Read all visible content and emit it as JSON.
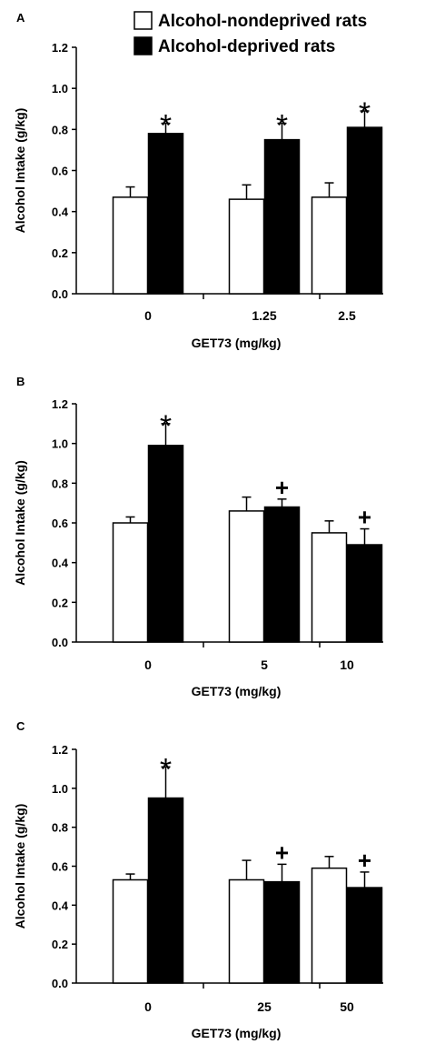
{
  "legend": {
    "nondeprived_label": "Alcohol-nondeprived rats",
    "deprived_label": "Alcohol-deprived rats",
    "nondeprived_color": "#ffffff",
    "deprived_color": "#000000"
  },
  "chart_data": [
    {
      "panel": "A",
      "type": "bar",
      "ylabel": "Alcohol Intake (g/kg)",
      "xlabel": "GET73 (mg/kg)",
      "ylim": [
        0,
        1.2
      ],
      "yticks": [
        "0.0",
        "0.2",
        "0.4",
        "0.6",
        "0.8",
        "1.0",
        "1.2"
      ],
      "categories": [
        "0",
        "1.25",
        "2.5"
      ],
      "series": [
        {
          "name": "Alcohol-nondeprived rats",
          "values": [
            0.47,
            0.46,
            0.47
          ],
          "errors": [
            0.05,
            0.07,
            0.07
          ],
          "markers": [
            "",
            "",
            ""
          ]
        },
        {
          "name": "Alcohol-deprived rats",
          "values": [
            0.78,
            0.75,
            0.81
          ],
          "errors": [
            0.05,
            0.08,
            0.08
          ],
          "markers": [
            "*",
            "*",
            "*"
          ]
        }
      ]
    },
    {
      "panel": "B",
      "type": "bar",
      "ylabel": "Alcohol Intake (g/kg)",
      "xlabel": "GET73 (mg/kg)",
      "ylim": [
        0,
        1.2
      ],
      "yticks": [
        "0.0",
        "0.2",
        "0.4",
        "0.6",
        "0.8",
        "1.0",
        "1.2"
      ],
      "categories": [
        "0",
        "5",
        "10"
      ],
      "series": [
        {
          "name": "Alcohol-nondeprived rats",
          "values": [
            0.6,
            0.66,
            0.55
          ],
          "errors": [
            0.03,
            0.07,
            0.06
          ],
          "markers": [
            "",
            "",
            ""
          ]
        },
        {
          "name": "Alcohol-deprived rats",
          "values": [
            0.99,
            0.68,
            0.49
          ],
          "errors": [
            0.11,
            0.04,
            0.08
          ],
          "markers": [
            "*",
            "+",
            "+"
          ]
        }
      ]
    },
    {
      "panel": "C",
      "type": "bar",
      "ylabel": "Alcohol Intake (g/kg)",
      "xlabel": "GET73 (mg/kg)",
      "ylim": [
        0,
        1.2
      ],
      "yticks": [
        "0.0",
        "0.2",
        "0.4",
        "0.6",
        "0.8",
        "1.0",
        "1.2"
      ],
      "categories": [
        "0",
        "25",
        "50"
      ],
      "series": [
        {
          "name": "Alcohol-nondeprived rats",
          "values": [
            0.53,
            0.53,
            0.59
          ],
          "errors": [
            0.03,
            0.1,
            0.06
          ],
          "markers": [
            "",
            "",
            ""
          ]
        },
        {
          "name": "Alcohol-deprived rats",
          "values": [
            0.95,
            0.52,
            0.49
          ],
          "errors": [
            0.16,
            0.09,
            0.08
          ],
          "markers": [
            "*",
            "+",
            "+"
          ]
        }
      ]
    }
  ]
}
